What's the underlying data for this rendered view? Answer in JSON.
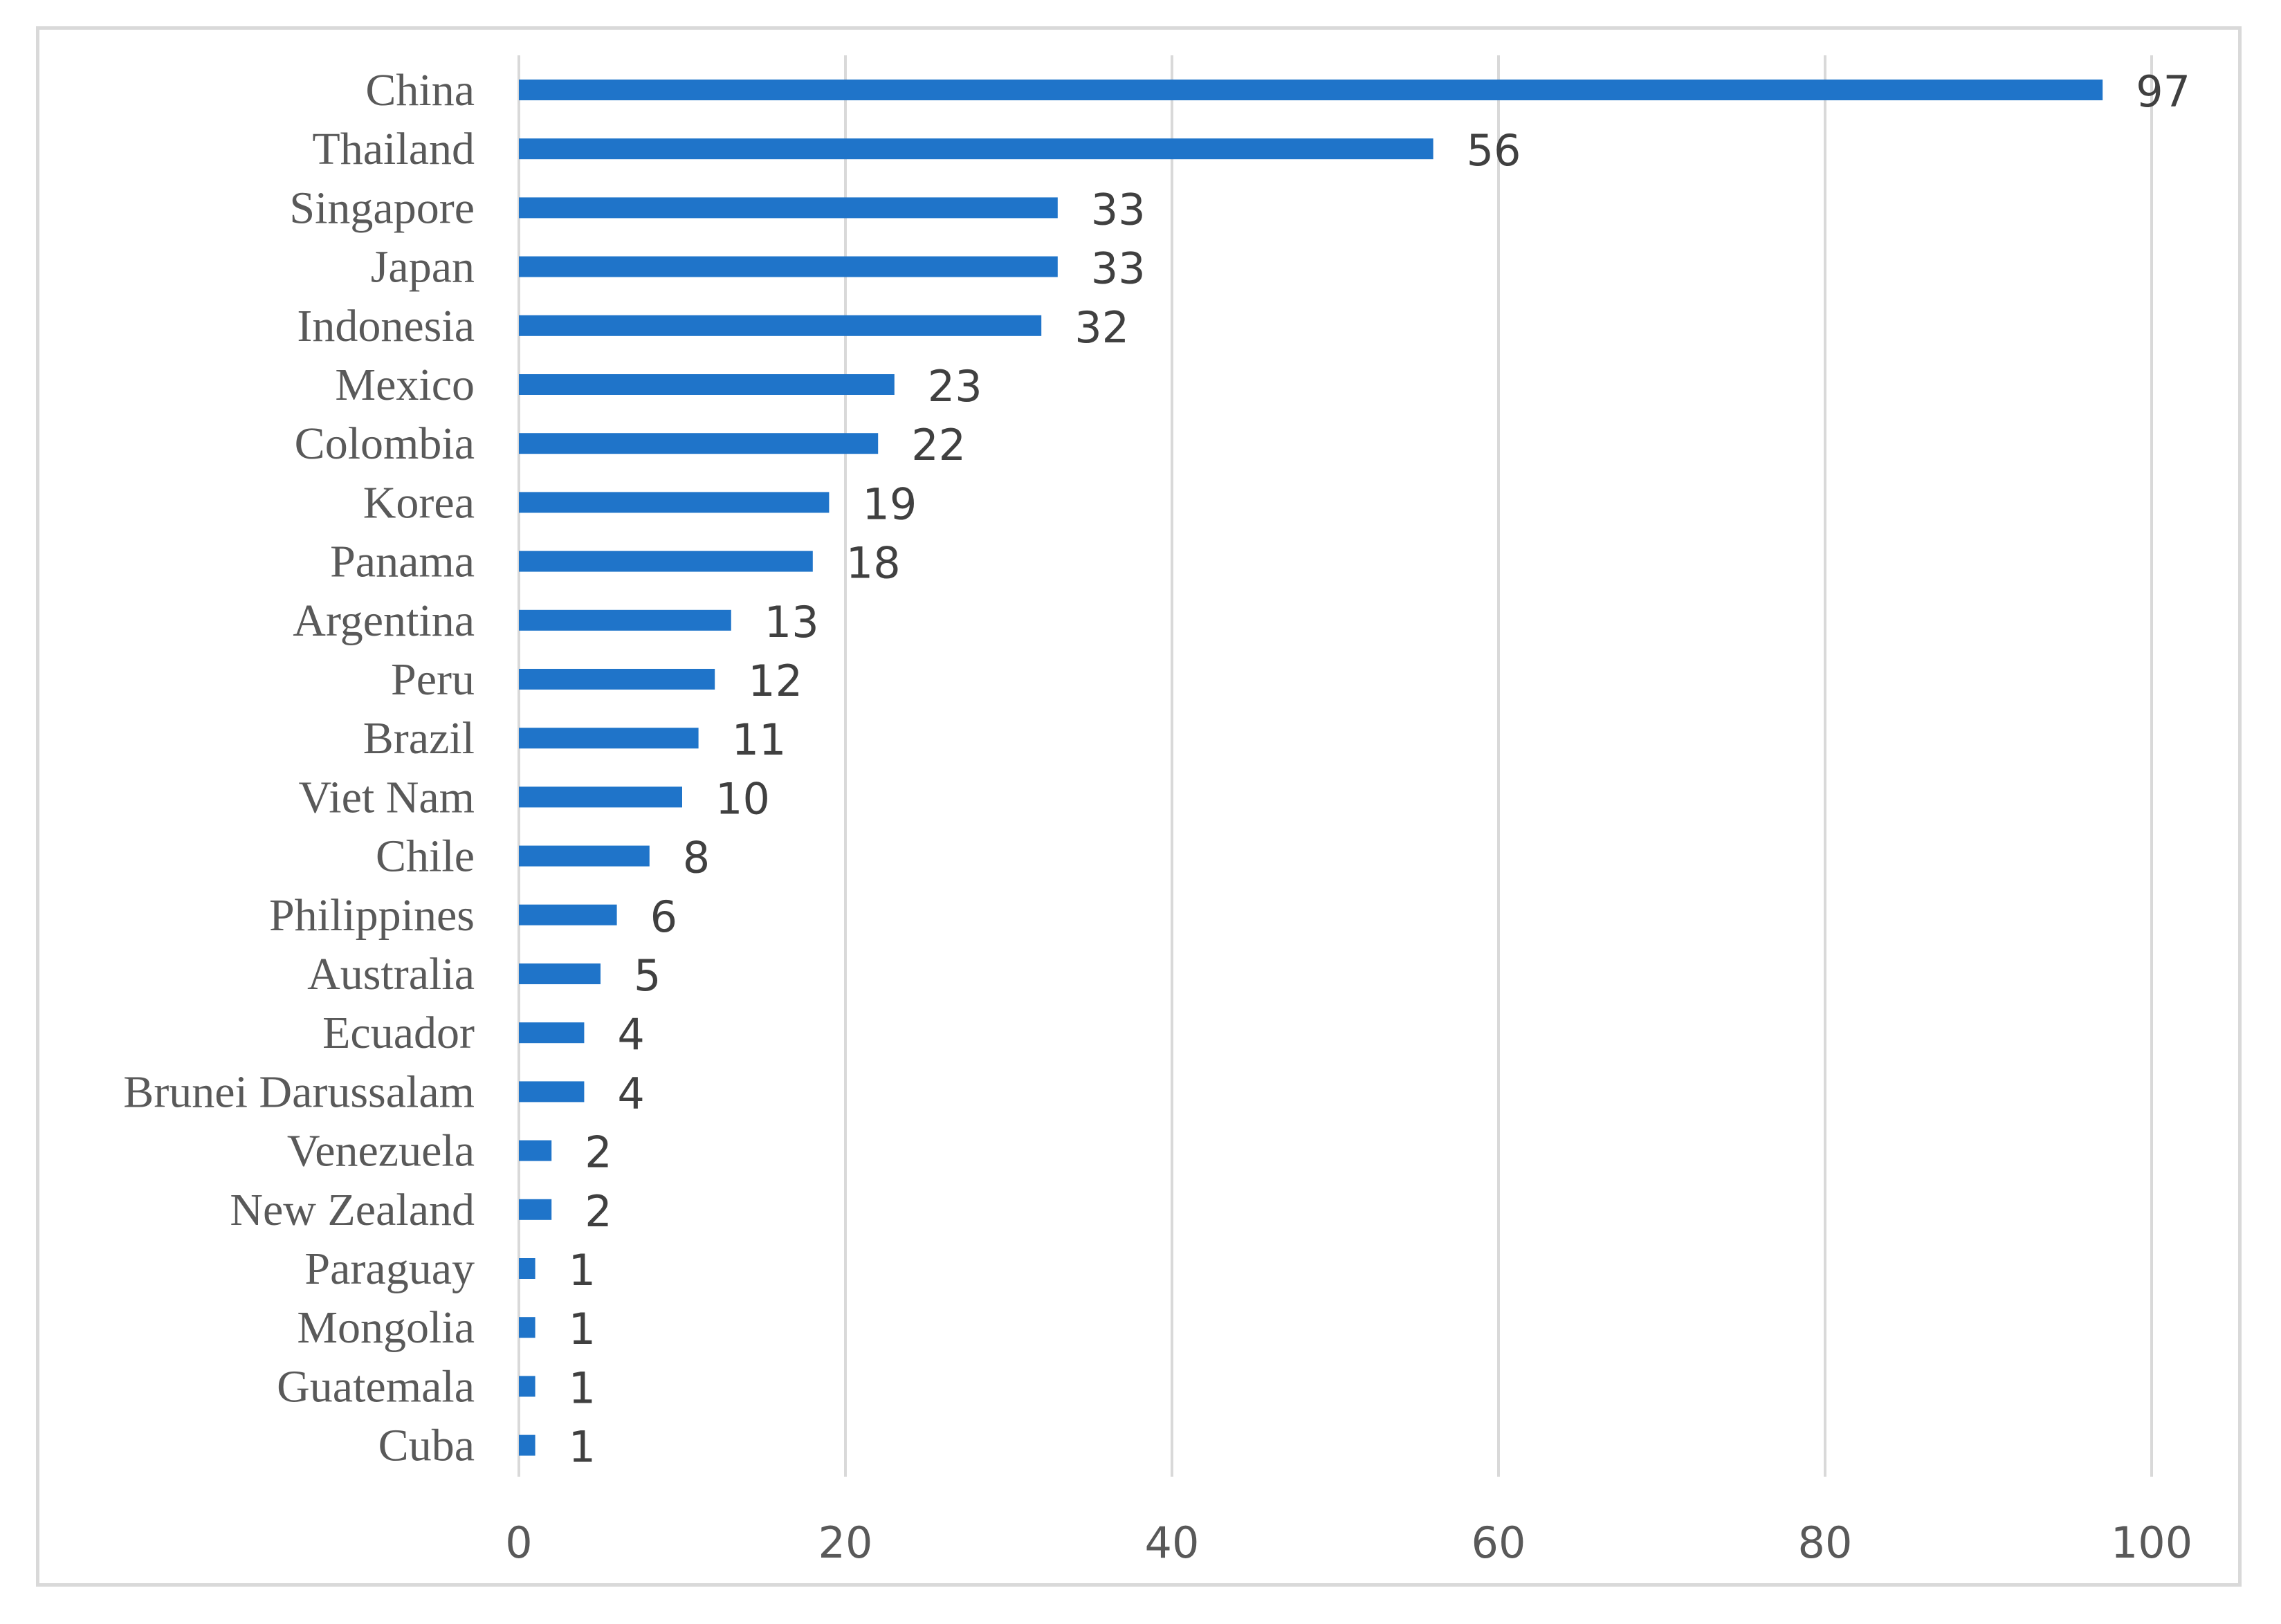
{
  "chart_data": {
    "type": "bar",
    "orientation": "horizontal",
    "title": "",
    "xlabel": "",
    "ylabel": "",
    "categories": [
      "China",
      "Thailand",
      "Singapore",
      "Japan",
      "Indonesia",
      "Mexico",
      "Colombia",
      "Korea",
      "Panama",
      "Argentina",
      "Peru",
      "Brazil",
      "Viet Nam",
      "Chile",
      "Philippines",
      "Australia",
      "Ecuador",
      "Brunei Darussalam",
      "Venezuela",
      "New Zealand",
      "Paraguay",
      "Mongolia",
      "Guatemala",
      "Cuba"
    ],
    "values": [
      97,
      56,
      33,
      33,
      32,
      23,
      22,
      19,
      18,
      13,
      12,
      11,
      10,
      8,
      6,
      5,
      4,
      4,
      2,
      2,
      1,
      1,
      1,
      1
    ],
    "xlim": [
      0,
      100
    ],
    "xticks": [
      0,
      20,
      40,
      60,
      80,
      100
    ],
    "grid": "vertical",
    "legend": "none",
    "data_labels": true,
    "colors": {
      "bar": "#1f74c9",
      "grid": "#d9d9d9",
      "frame": "#d9d9d9"
    }
  }
}
